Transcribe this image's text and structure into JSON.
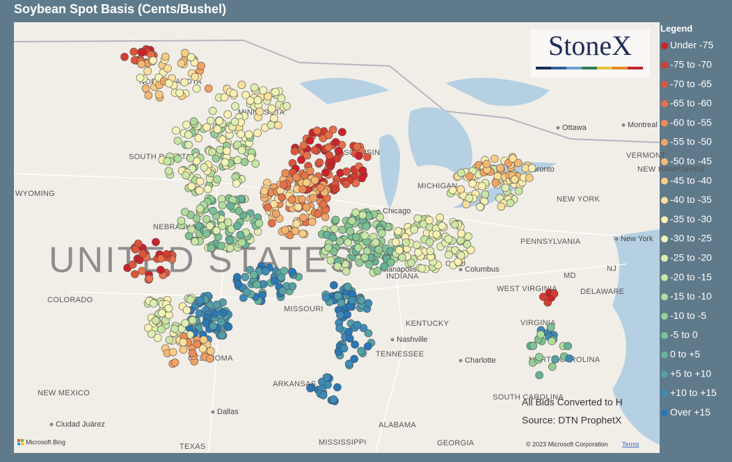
{
  "title": "Soybean Spot Basis (Cents/Bushel)",
  "legend": {
    "title": "Legend",
    "items": [
      {
        "label": "Under -75",
        "color": "#d0202a"
      },
      {
        "label": "-75 to -70",
        "color": "#d93a2e"
      },
      {
        "label": "-70 to -65",
        "color": "#e0553a"
      },
      {
        "label": "-65 to -60",
        "color": "#e87048"
      },
      {
        "label": "-60 to -55",
        "color": "#ef8a55"
      },
      {
        "label": "-55 to -50",
        "color": "#f4a263"
      },
      {
        "label": "-50 to -45",
        "color": "#f8b872"
      },
      {
        "label": "-45 to -40",
        "color": "#fbcc85"
      },
      {
        "label": "-40 to -35",
        "color": "#fde09a"
      },
      {
        "label": "-35 to -30",
        "color": "#fdf0b0"
      },
      {
        "label": "-30 to -25",
        "color": "#f2f5b8"
      },
      {
        "label": "-25 to -20",
        "color": "#e0efb0"
      },
      {
        "label": "-20 to -15",
        "color": "#c9e6a5"
      },
      {
        "label": "-15 to -10",
        "color": "#b0dc9c"
      },
      {
        "label": "-10 to -5",
        "color": "#95cf96"
      },
      {
        "label": "-5 to 0",
        "color": "#7cc293"
      },
      {
        "label": "0 to +5",
        "color": "#66b39a"
      },
      {
        "label": "+5 to +10",
        "color": "#53a0a8"
      },
      {
        "label": "+10 to +15",
        "color": "#3c8cb9"
      },
      {
        "label": "Over +15",
        "color": "#2878b8"
      }
    ]
  },
  "map": {
    "country_label": "UNITED STATES",
    "places": [
      "NORTH DAKOTA",
      "MINNESOTA",
      "SOUTH DAKOTA",
      "WYOMING",
      "NEBRASKA",
      "COLORADO",
      "MISSOURI",
      "KENTUCKY",
      "TENNESSEE",
      "ARKANSAS",
      "OKLAHOMA",
      "NEW MEXICO",
      "TEXAS",
      "MISSISSIPPI",
      "ALABAMA",
      "GEORGIA",
      "WEST VIRGINIA",
      "VIRGINIA",
      "PENNSYLVANIA",
      "NEW YORK",
      "NORTH CAROLINA",
      "SOUTH CAROLINA",
      "INDIANA",
      "MICHIGAN",
      "WISCONSIN",
      "OHIO",
      "DELAWARE",
      "MD",
      "NJ",
      "VERMONT",
      "NEW HAMPSHIRE",
      "Ottawa",
      "Montreal",
      "Toronto",
      "Chicago",
      "Indianapolis",
      "Columbus",
      "Nashville",
      "Charlotte",
      "New York",
      "Dallas",
      "Ciudad Juárez"
    ],
    "notes": [
      "All Bids Converted to H",
      "Source: DTN ProphetX"
    ],
    "logo": "StoneX",
    "attribution": "Microsoft Bing",
    "copyright": "© 2023 Microsoft Corporation",
    "terms": "Terms"
  }
}
